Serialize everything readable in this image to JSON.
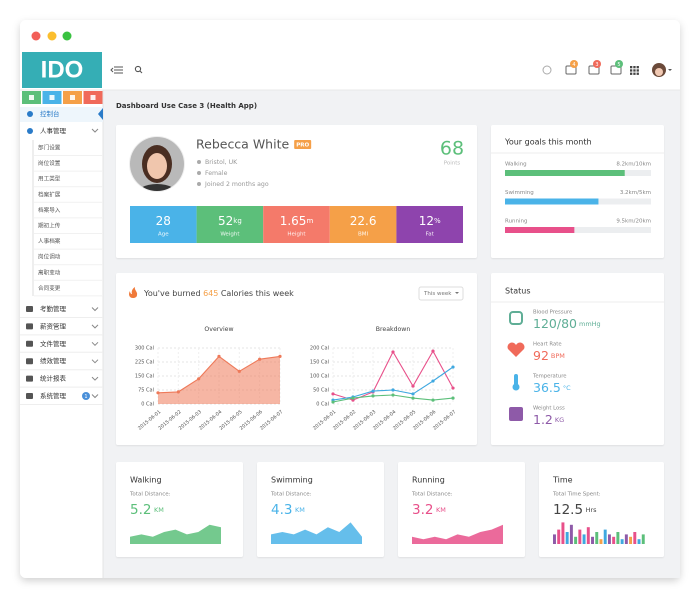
{
  "sidebar": {
    "logo": "IDO",
    "home": "控制台",
    "menu_open": "人事管理",
    "submenu": [
      "部门设置",
      "岗位设置",
      "用工类型",
      "档案扩展",
      "档案导入",
      "期初上传",
      "人事档案",
      "岗位调动",
      "离职变动",
      "合同变更"
    ],
    "menu": [
      "考勤管理",
      "薪资管理",
      "文件管理",
      "绩效管理",
      "统计报表",
      "系统管理"
    ],
    "menu_badge": "1"
  },
  "topbar": {
    "badges": [
      "4",
      "3",
      "5"
    ]
  },
  "page_title": "Dashboard Use Case 3 (Health App)",
  "profile": {
    "name": "Rebecca White",
    "badge": "PRO",
    "location": "Bristol, UK",
    "gender": "Female",
    "joined": "Joined 2 months ago",
    "points": "68",
    "points_label": "Points",
    "stats": [
      {
        "value": "28",
        "label": "Age",
        "color": "#4ab3e8"
      },
      {
        "value": "52",
        "unit": "kg",
        "label": "Weight",
        "color": "#5cbf7a"
      },
      {
        "value": "1.65",
        "unit": "m",
        "label": "Height",
        "color": "#f47a6a"
      },
      {
        "value": "22.6",
        "label": "BMI",
        "color": "#f5a048"
      },
      {
        "value": "12",
        "unit": "%",
        "label": "Fat",
        "color": "#8e44ad"
      }
    ]
  },
  "goals": {
    "title": "Your goals this month",
    "items": [
      {
        "name": "Walking",
        "label": "8.2km/10km",
        "current": 8.2,
        "target": 10,
        "color": "#5cbf7a"
      },
      {
        "name": "Swimming",
        "label": "3.2km/5km",
        "current": 3.2,
        "target": 5,
        "color": "#4ab3e8"
      },
      {
        "name": "Running",
        "label": "9.5km/20km",
        "current": 9.5,
        "target": 20,
        "color": "#e8508a"
      }
    ]
  },
  "calories": {
    "prefix": "You've burned",
    "value": "645",
    "suffix": "Calories this week",
    "dropdown": "This week",
    "charts": [
      {
        "type": "area",
        "title": "Overview",
        "categories": [
          "2015-06-01",
          "2015-06-02",
          "2015-06-03",
          "2015-06-04",
          "2015-06-05",
          "2015-06-06",
          "2015-06-07"
        ],
        "series": [
          {
            "color": "#ee7a5a",
            "values": [
              60,
              65,
              135,
              255,
              175,
              240,
              255
            ]
          }
        ],
        "ylim": [
          0,
          300
        ],
        "yticks": [
          {
            "value": 0,
            "label": "0 Cal"
          },
          {
            "value": 75,
            "label": "75 Cal"
          },
          {
            "value": 150,
            "label": "150 Cal"
          },
          {
            "value": 225,
            "label": "225 Cal"
          },
          {
            "value": 300,
            "label": "300 Cal"
          }
        ]
      },
      {
        "type": "line",
        "title": "Breakdown",
        "categories": [
          "2015-06-01",
          "2015-06-02",
          "2015-06-03",
          "2015-06-04",
          "2015-06-05",
          "2015-06-06",
          "2015-06-07"
        ],
        "series": [
          {
            "color": "#e8508a",
            "values": [
              36,
              14,
              43,
              186,
              64,
              189,
              57
            ]
          },
          {
            "color": "#3fa8e0",
            "values": [
              14,
              25,
              46,
              50,
              36,
              82,
              132
            ]
          },
          {
            "color": "#5cbf7a",
            "values": [
              7,
              21,
              29,
              32,
              21,
              14,
              21
            ]
          }
        ],
        "ylim": [
          0,
          200
        ],
        "yticks": [
          {
            "value": 0,
            "label": "0 Cal"
          },
          {
            "value": 50,
            "label": "50 Cal"
          },
          {
            "value": 100,
            "label": "100 Cal"
          },
          {
            "value": 150,
            "label": "150 Cal"
          },
          {
            "value": 200,
            "label": "200 Cal"
          }
        ]
      }
    ]
  },
  "status": {
    "title": "Status",
    "items": [
      {
        "label": "Blood Pressure",
        "value": "120/80",
        "unit": "mmHg",
        "color": "#5fae96"
      },
      {
        "label": "Heart Rate",
        "value": "92",
        "unit": "BPM",
        "color": "#f06a5a"
      },
      {
        "label": "Temperature",
        "value": "36.5",
        "unit": "°C",
        "color": "#4ab3e8"
      },
      {
        "label": "Weight Loss",
        "value": "1.2",
        "unit": "KG",
        "color": "#8e5aa8"
      }
    ]
  },
  "summary": [
    {
      "title": "Walking",
      "caption": "Total Distance:",
      "value": "5.2",
      "unit": "KM",
      "color": "#5cbf7a",
      "type": "area",
      "values": [
        3,
        4,
        3,
        5,
        6,
        4,
        5,
        8,
        7
      ]
    },
    {
      "title": "Swimming",
      "caption": "Total Distance:",
      "value": "4.3",
      "unit": "KM",
      "color": "#4ab3e8",
      "type": "area",
      "values": [
        4,
        5,
        4,
        6,
        4,
        7,
        5,
        9,
        3
      ]
    },
    {
      "title": "Running",
      "caption": "Total Distance:",
      "value": "3.2",
      "unit": "KM",
      "color": "#e8508a",
      "type": "area",
      "values": [
        3,
        2,
        3,
        2,
        4,
        3,
        5,
        6,
        8
      ]
    },
    {
      "title": "Time",
      "caption": "Total Time Spent:",
      "value": "12.5",
      "unit": "Hrs",
      "color": "#444444",
      "type": "bar",
      "values": [
        4,
        6,
        9,
        5,
        8,
        3,
        6,
        4,
        7,
        3,
        5,
        2,
        6,
        4,
        3,
        5,
        2,
        4,
        3,
        5,
        2,
        4
      ],
      "colors": [
        "#8e5aa8",
        "#e8508a",
        "#e8508a",
        "#3fa8e0",
        "#8e5aa8",
        "#5cbf7a",
        "#e8508a",
        "#3fa8e0",
        "#e8508a",
        "#8e5aa8",
        "#5cbf7a",
        "#f5a048",
        "#3fa8e0",
        "#8e5aa8",
        "#e8508a",
        "#5cbf7a",
        "#3fa8e0",
        "#8e5aa8",
        "#f5a048",
        "#e8508a",
        "#3fa8e0",
        "#5cbf7a"
      ]
    }
  ]
}
